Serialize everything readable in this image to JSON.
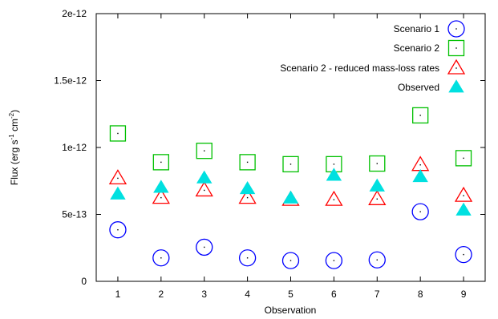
{
  "chart_data": {
    "type": "scatter",
    "xlabel": "Observation",
    "ylabel": "Flux (erg s⁻¹ cm⁻²)",
    "ylabel_parts": {
      "main": "Flux (erg s",
      "exp1": "-1",
      "mid": " cm",
      "exp2": "-2",
      "end": ")"
    },
    "xlim": [
      0.5,
      9.5
    ],
    "ylim": [
      0,
      2e-12
    ],
    "x_ticks": [
      1,
      2,
      3,
      4,
      5,
      6,
      7,
      8,
      9
    ],
    "x_tick_labels": [
      "1",
      "2",
      "3",
      "4",
      "5",
      "6",
      "7",
      "8",
      "9"
    ],
    "y_ticks": [
      0,
      5e-13,
      1e-12,
      1.5e-12,
      2e-12
    ],
    "y_tick_labels": [
      "0",
      "5e-13",
      "1e-12",
      "1.5e-12",
      "2e-12"
    ],
    "grid": false,
    "legend_position": "top-right",
    "series": [
      {
        "name": "Scenario 1",
        "marker": "open-circle",
        "color": "#0000ff",
        "x": [
          1,
          2,
          3,
          4,
          5,
          6,
          7,
          8,
          9
        ],
        "y": [
          3.85e-13,
          1.75e-13,
          2.55e-13,
          1.75e-13,
          1.55e-13,
          1.55e-13,
          1.6e-13,
          5.2e-13,
          2e-13
        ]
      },
      {
        "name": "Scenario 2",
        "marker": "open-square",
        "color": "#00c000",
        "x": [
          1,
          2,
          3,
          4,
          5,
          6,
          7,
          8,
          9
        ],
        "y": [
          1.105e-12,
          8.9e-13,
          9.75e-13,
          8.9e-13,
          8.75e-13,
          8.75e-13,
          8.8e-13,
          1.24e-12,
          9.2e-13
        ]
      },
      {
        "name": "Scenario 2 - reduced mass-loss rates",
        "marker": "open-triangle",
        "color": "#ff0000",
        "x": [
          1,
          2,
          3,
          4,
          5,
          6,
          7,
          8,
          9
        ],
        "y": [
          7.7e-13,
          6.25e-13,
          6.8e-13,
          6.25e-13,
          6.1e-13,
          6.1e-13,
          6.15e-13,
          8.7e-13,
          6.4e-13
        ]
      },
      {
        "name": "Observed",
        "marker": "filled-triangle",
        "color": "#00e0e0",
        "x": [
          1,
          2,
          3,
          4,
          5,
          6,
          7,
          8,
          9
        ],
        "y": [
          6.5e-13,
          7e-13,
          7.7e-13,
          6.9e-13,
          6.2e-13,
          7.9e-13,
          7.1e-13,
          7.8e-13,
          5.3e-13
        ]
      }
    ]
  }
}
